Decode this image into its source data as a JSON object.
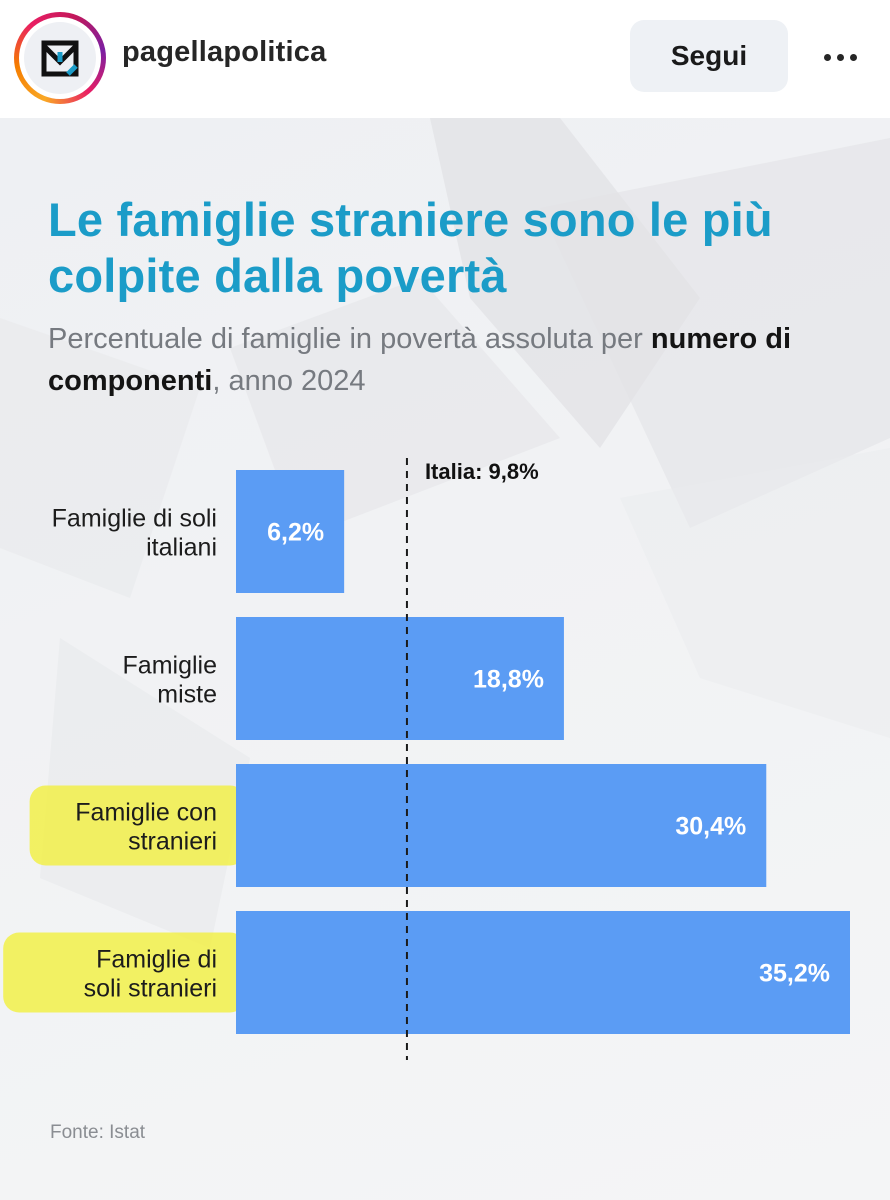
{
  "header": {
    "username": "pagellapolitica",
    "follow_label": "Segui",
    "logo_icon": "pagella-politica-logo-icon",
    "more_icon": "more-options-icon"
  },
  "colors": {
    "title": "#1b9cc8",
    "bar": "#5b9cf4",
    "highlight": "#f2f03a"
  },
  "chart_data": {
    "type": "bar",
    "orientation": "horizontal",
    "title": "Le famiglie straniere sono le più colpite dalla povertà",
    "subtitle_parts": [
      "Percentuale di famiglie in povertà assoluta per ",
      "numero di componenti",
      ", anno 2024"
    ],
    "categories": [
      [
        "Famiglie di soli",
        "italiani"
      ],
      [
        "Famiglie",
        "miste"
      ],
      [
        "Famiglie con",
        "stranieri"
      ],
      [
        "Famiglie di",
        "soli stranieri"
      ]
    ],
    "values": [
      6.2,
      18.8,
      30.4,
      35.2
    ],
    "value_labels": [
      "6,2%",
      "18,8%",
      "30,4%",
      "35,2%"
    ],
    "highlighted": [
      false,
      false,
      true,
      true
    ],
    "reference_line": {
      "value": 9.8,
      "label": "Italia: 9,8%"
    },
    "xlim": [
      0,
      35.2
    ],
    "source": "Fonte: Istat"
  }
}
